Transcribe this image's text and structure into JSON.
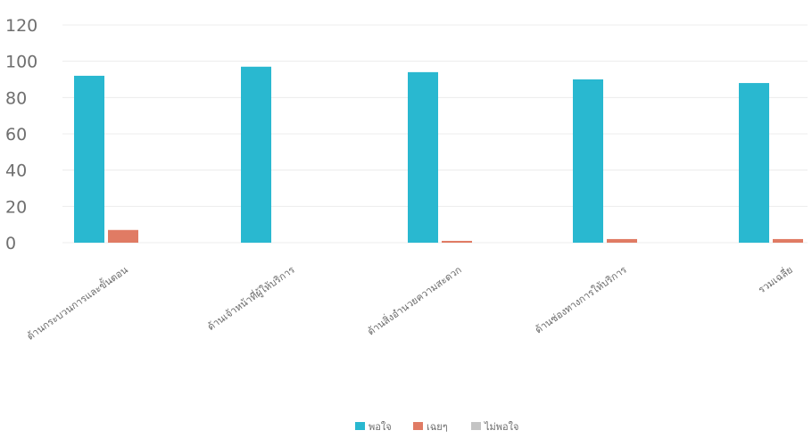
{
  "chart_data": {
    "type": "bar",
    "categories": [
      "ด้านกระบวนการและขั้นตอน",
      "ด้านเจ้าหน้าที่ผู้ให้บริการ",
      "ด้านสิ่งอำนวยความสะดวก",
      "ด้านช่องทางการให้บริการ",
      "รวมเฉลี่ย"
    ],
    "series": [
      {
        "name": "พอใจ",
        "color": "#29b8d0",
        "values": [
          92,
          97,
          94,
          90,
          88
        ]
      },
      {
        "name": "เฉยๆ",
        "color": "#e07b64",
        "values": [
          7,
          0,
          1,
          2,
          2
        ]
      },
      {
        "name": "ไม่พอใจ",
        "color": "#c4c4c4",
        "values": [
          0,
          0,
          0,
          0,
          0
        ]
      }
    ],
    "yticks": [
      0,
      20,
      40,
      60,
      80,
      100,
      120
    ],
    "ylim": [
      0,
      120
    ],
    "grid": true,
    "legend_position": "bottom-center",
    "title": "",
    "xlabel": "",
    "ylabel": ""
  }
}
